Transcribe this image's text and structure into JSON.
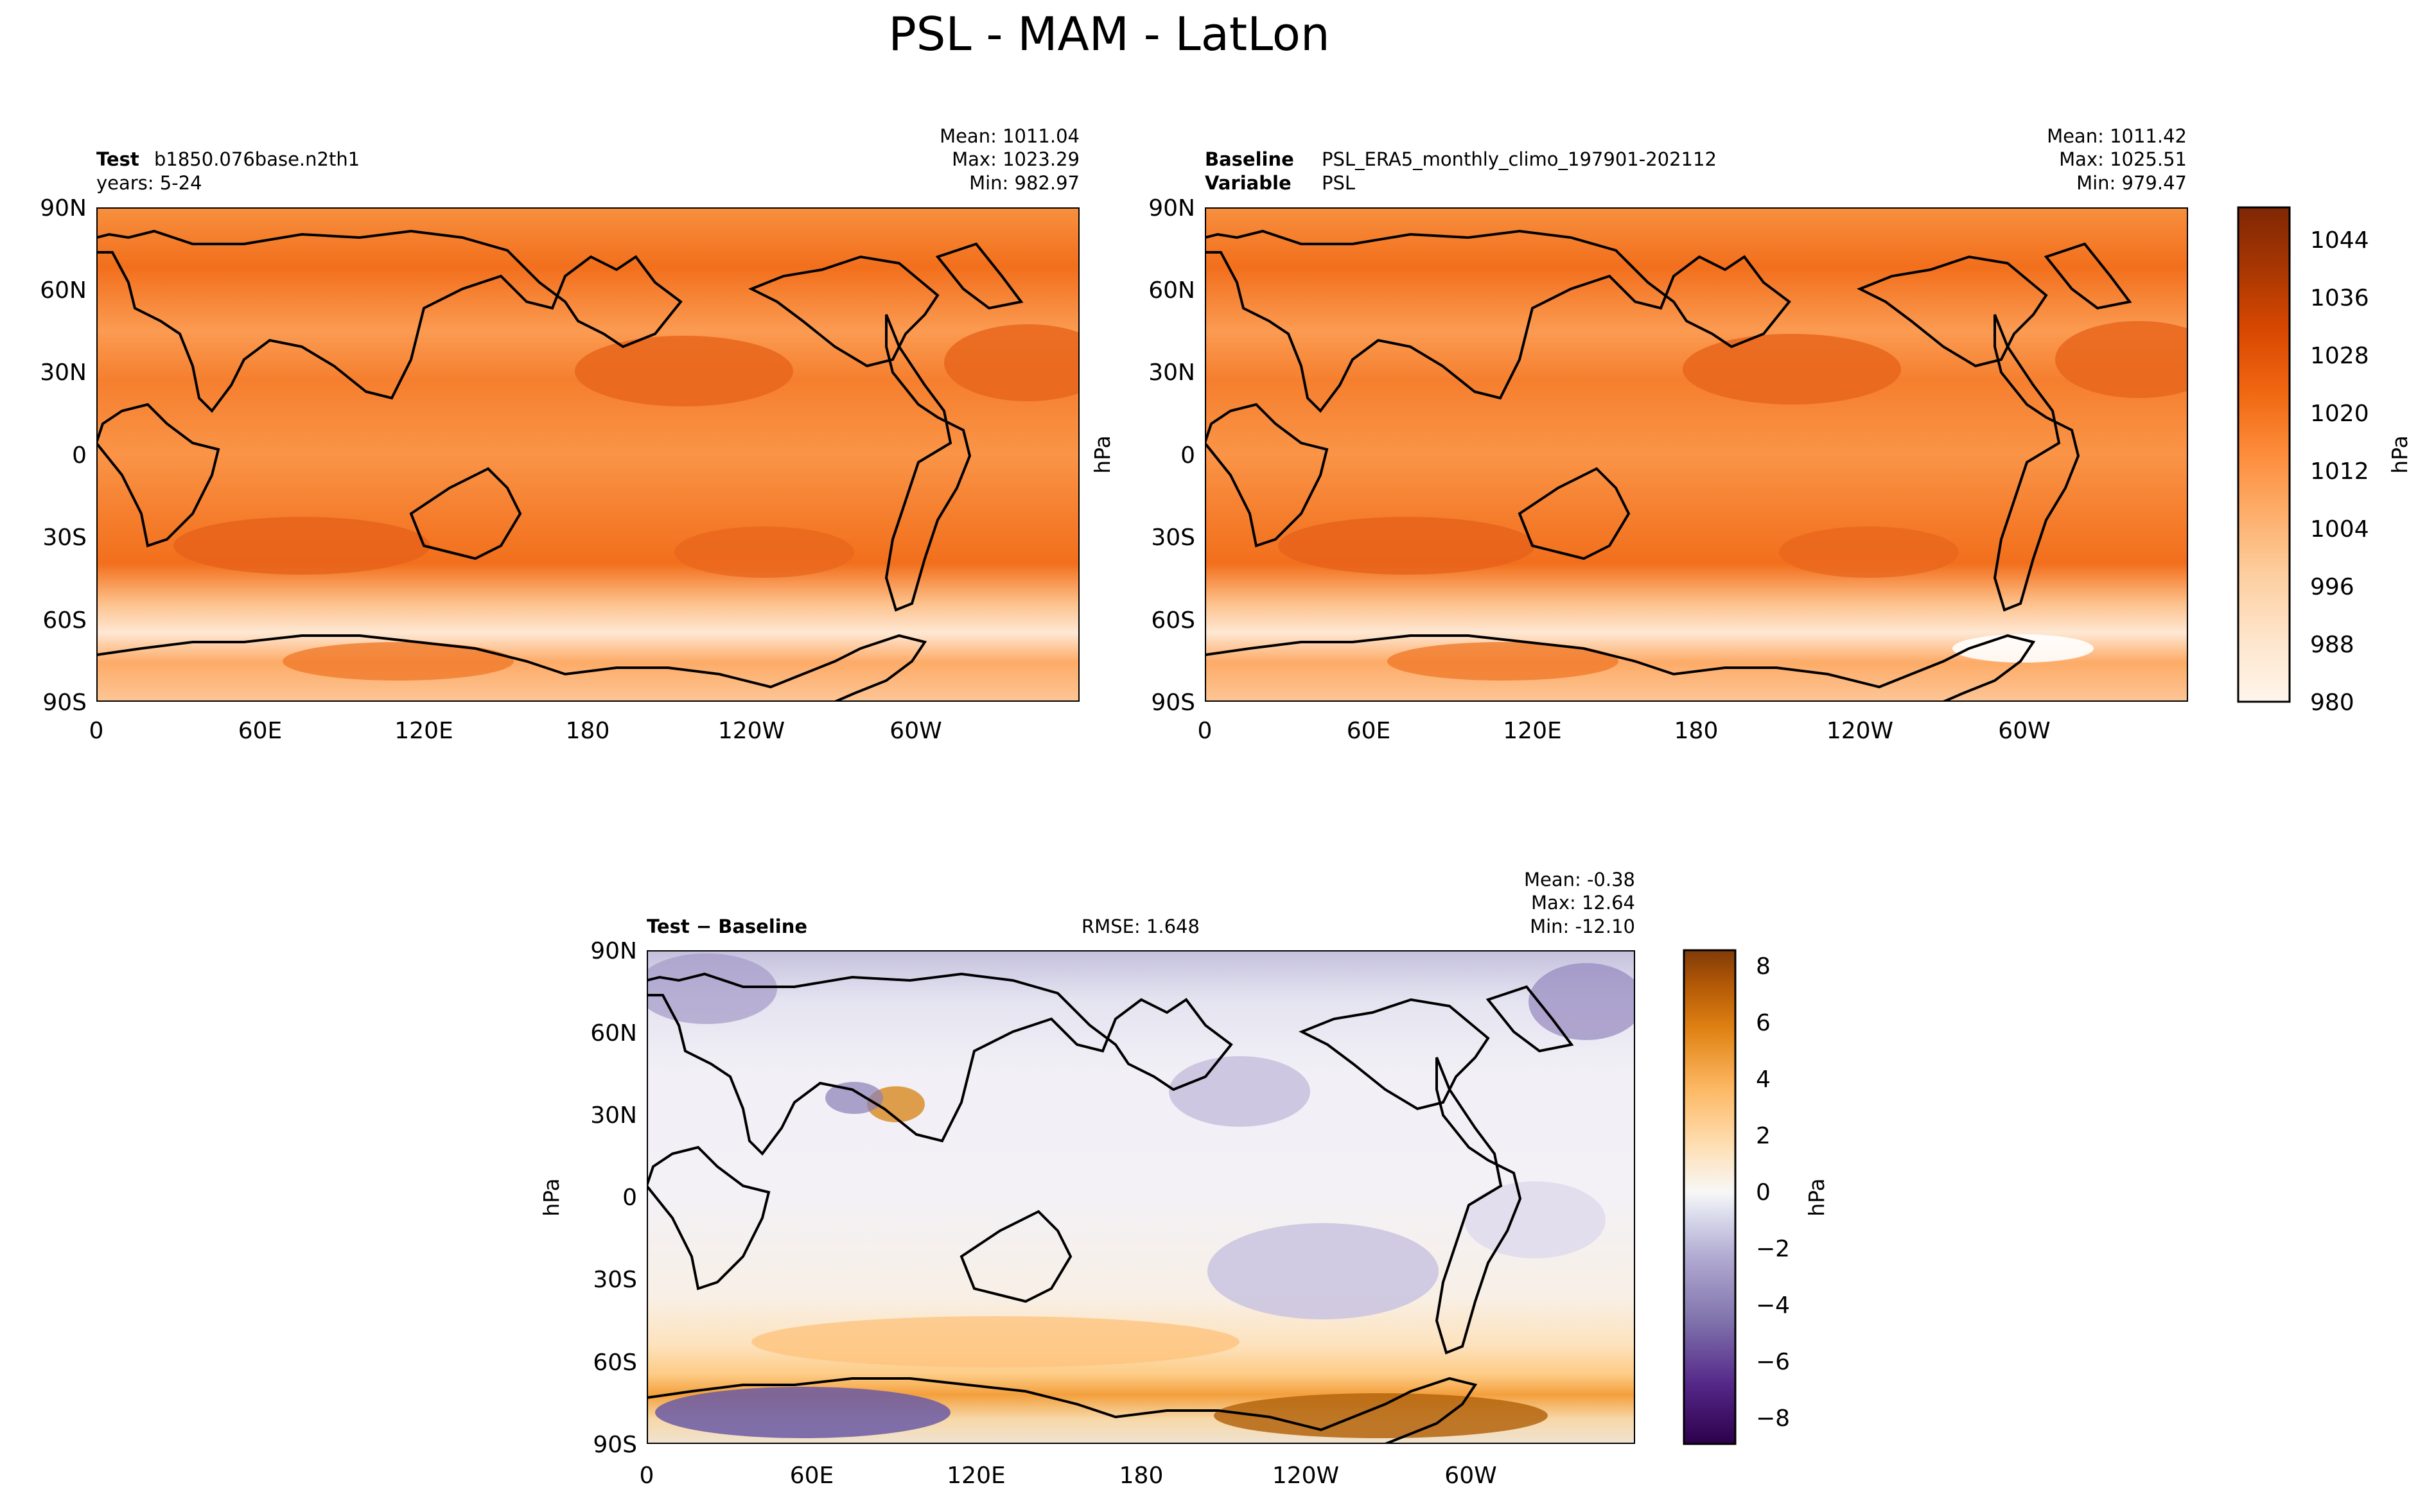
{
  "figure": {
    "title": "PSL - MAM - LatLon"
  },
  "colors": {
    "test_baseline_palette": [
      "#fff5eb",
      "#fee6ce",
      "#fdd0a2",
      "#fdae6b",
      "#fd8d3c",
      "#f16913",
      "#d94801",
      "#a63603",
      "#7f2704"
    ],
    "diff_palette_neg": [
      "#2d004b",
      "#542788",
      "#8073ac",
      "#b2abd2",
      "#d8daeb",
      "#f7f7f7"
    ],
    "diff_palette_pos": [
      "#f7f7f7",
      "#fee0b6",
      "#fdb863",
      "#e08214",
      "#b35806",
      "#7f3b08"
    ],
    "coastline": "#000000"
  },
  "chart_data": [
    {
      "type": "heatmap",
      "panel": "test",
      "label_bold": "Test",
      "label_text": "b1850.076base.n2th1",
      "label_line2": "years: 5-24",
      "stats": [
        "Mean: 1011.04",
        "Max: 1023.29",
        "Min: 982.97"
      ],
      "xticks": [
        "0",
        "60E",
        "120E",
        "180",
        "120W",
        "60W"
      ],
      "yticks": [
        "90N",
        "60N",
        "30N",
        "0",
        "30S",
        "60S",
        "90S"
      ],
      "lon_range": [
        0,
        360
      ],
      "lat_range": [
        -90,
        90
      ],
      "mean": 1011.04,
      "max": 1023.29,
      "min": 982.97
    },
    {
      "type": "heatmap",
      "panel": "baseline",
      "label_bold": "Baseline",
      "label_text": "PSL_ERA5_monthly_climo_197901-202112",
      "label2_bold": "Variable",
      "label2_text": "PSL",
      "stats": [
        "Mean: 1011.42",
        "Max: 1025.51",
        "Min: 979.47"
      ],
      "ylabel": "hPa",
      "xticks": [
        "0",
        "60E",
        "120E",
        "180",
        "120W",
        "60W"
      ],
      "yticks": [
        "90N",
        "60N",
        "30N",
        "0",
        "30S",
        "60S",
        "90S"
      ],
      "lon_range": [
        0,
        360
      ],
      "lat_range": [
        -90,
        90
      ],
      "mean": 1011.42,
      "max": 1025.51,
      "min": 979.47
    },
    {
      "type": "heatmap",
      "panel": "difference",
      "label_bold": "Test − Baseline",
      "rmse": "RMSE: 1.648",
      "stats": [
        "Mean: -0.38",
        "Max: 12.64",
        "Min: -12.10"
      ],
      "ylabel": "hPa",
      "xticks": [
        "0",
        "60E",
        "120E",
        "180",
        "120W",
        "60W"
      ],
      "yticks": [
        "90N",
        "60N",
        "30N",
        "0",
        "30S",
        "60S",
        "90S"
      ],
      "lon_range": [
        0,
        360
      ],
      "lat_range": [
        -90,
        90
      ],
      "mean": -0.38,
      "max": 12.64,
      "min": -12.1
    }
  ],
  "colorbars": {
    "main": {
      "label": "hPa",
      "range": [
        980,
        1048
      ],
      "ticks": [
        "1044",
        "1036",
        "1028",
        "1020",
        "1012",
        "1004",
        "996",
        "988",
        "980"
      ]
    },
    "diff": {
      "label": "hPa",
      "range": [
        -9,
        8.5
      ],
      "ticks": [
        "8",
        "6",
        "4",
        "2",
        "0",
        "−2",
        "−4",
        "−6",
        "−8"
      ]
    }
  }
}
